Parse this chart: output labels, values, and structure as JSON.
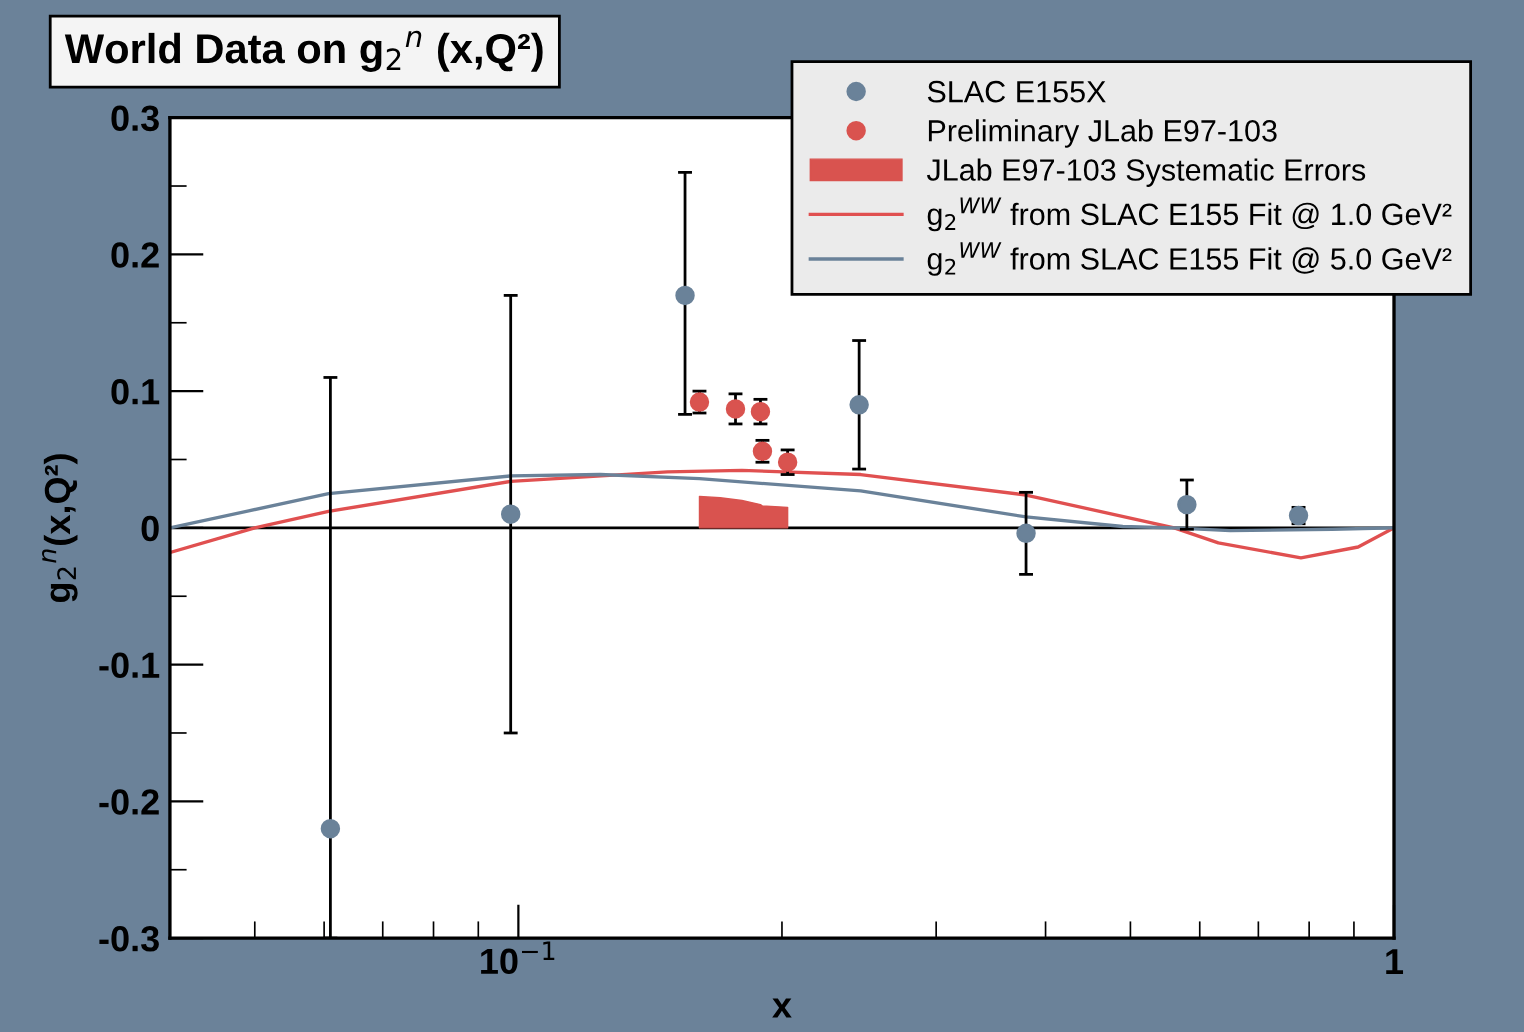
{
  "chart_data": {
    "type": "scatter",
    "title": "World Data on g$_{2}$$^{n}$ (x,Q²)",
    "xlabel": "x",
    "ylabel": "g$_{2}$$^{n}$(x,Q²)",
    "log": "x",
    "xlim": [
      0.04,
      1
    ],
    "xticks": [
      {
        "value": 0.1,
        "label": "10$^{−1}$"
      },
      1
    ],
    "ylim": [
      -0.3,
      0.3
    ],
    "yticks": [
      -0.3,
      -0.2,
      -0.1,
      0,
      0.1,
      0.2,
      0.3
    ],
    "grid": false,
    "legend": "top right",
    "ref_lines": [
      {
        "axis": "y",
        "value": 0,
        "color": "#000000"
      }
    ],
    "series": [
      {
        "name": "SLAC E155X",
        "marker": "circle",
        "color": "#6a8299",
        "x": [
          0.061,
          0.098,
          0.155,
          0.245,
          0.38,
          0.58,
          0.778
        ],
        "values": [
          -0.22,
          0.01,
          0.17,
          0.09,
          -0.004,
          0.017,
          0.009
        ],
        "errors": [
          [
            -0.3,
            0.11
          ],
          0.16,
          [
            0.083,
            0.26
          ],
          0.047,
          0.03,
          0.018,
          0.006
        ]
      },
      {
        "name": "Preliminary JLab E97-103",
        "marker": "circle",
        "color": "#d9534f",
        "x": [
          0.161,
          0.177,
          0.189,
          0.19,
          0.203
        ],
        "values": [
          0.092,
          0.087,
          0.085,
          0.056,
          0.048
        ],
        "errors": [
          0.008,
          0.011,
          0.009,
          0.008,
          0.009
        ]
      },
      {
        "name": "JLab E97-103 Systematic Errors",
        "type": "area",
        "color": "#d9534f",
        "x": [
          0.161,
          0.17,
          0.18,
          0.189,
          0.19,
          0.203
        ],
        "values": [
          0.023,
          0.022,
          0.02,
          0.017,
          0.016,
          0.015
        ]
      },
      {
        "name": "g$_{2}$$^{WW}$ from SLAC E155 Fit @ 1.0 GeV²",
        "type": "line",
        "color": "#e05050",
        "x": [
          0.04,
          0.05,
          0.0607,
          0.098,
          0.148,
          0.18,
          0.246,
          0.38,
          0.561,
          0.63,
          0.783,
          0.91,
          1.0
        ],
        "values": [
          -0.018,
          0,
          0.012,
          0.034,
          0.041,
          0.042,
          0.039,
          0.024,
          0,
          -0.011,
          -0.022,
          -0.014,
          0
        ]
      },
      {
        "name": "g$_{2}$$^{WW}$ from SLAC E155 Fit @ 5.0 GeV²",
        "type": "line",
        "color": "#6a8299",
        "x": [
          0.04,
          0.0607,
          0.098,
          0.124,
          0.161,
          0.246,
          0.38,
          0.49,
          0.56,
          0.65,
          0.85,
          1.0
        ],
        "values": [
          0,
          0.025,
          0.038,
          0.039,
          0.036,
          0.027,
          0.008,
          0.001,
          0,
          -0.002,
          -0.001,
          0
        ]
      }
    ]
  }
}
